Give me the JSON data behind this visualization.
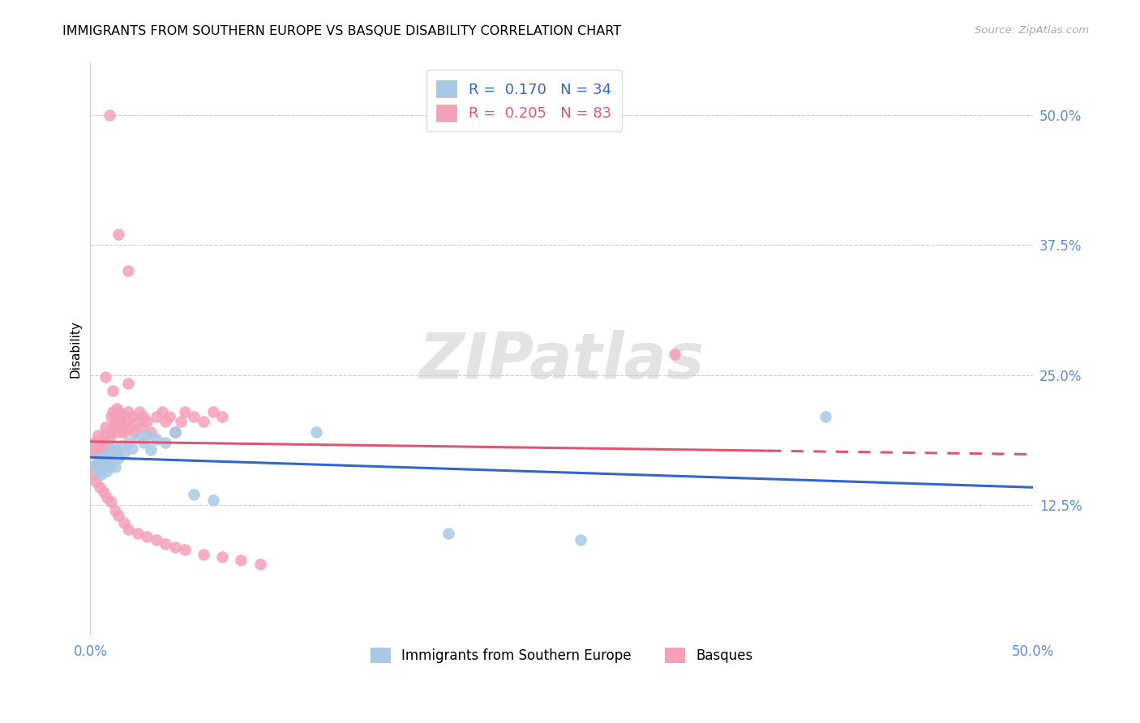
{
  "title": "IMMIGRANTS FROM SOUTHERN EUROPE VS BASQUE DISABILITY CORRELATION CHART",
  "source": "Source: ZipAtlas.com",
  "ylabel": "Disability",
  "xlim": [
    0.0,
    0.5
  ],
  "ylim": [
    0.0,
    0.55
  ],
  "xtick_positions": [
    0.0,
    0.1,
    0.2,
    0.3,
    0.4,
    0.5
  ],
  "xticklabels": [
    "0.0%",
    "",
    "",
    "",
    "",
    "50.0%"
  ],
  "ytick_positions": [
    0.125,
    0.25,
    0.375,
    0.5
  ],
  "ytick_labels": [
    "12.5%",
    "25.0%",
    "37.5%",
    "50.0%"
  ],
  "legend_r_blue": "0.170",
  "legend_n_blue": "34",
  "legend_r_pink": "0.205",
  "legend_n_pink": "83",
  "legend_label_blue": "Immigrants from Southern Europe",
  "legend_label_pink": "Basques",
  "blue_color": "#a8c8e8",
  "pink_color": "#f4a0b8",
  "blue_line_color": "#3366cc",
  "pink_line_color": "#e05575",
  "blue_scatter_x": [
    0.003,
    0.004,
    0.005,
    0.005,
    0.006,
    0.006,
    0.007,
    0.007,
    0.008,
    0.009,
    0.01,
    0.01,
    0.011,
    0.012,
    0.013,
    0.014,
    0.015,
    0.016,
    0.018,
    0.02,
    0.022,
    0.025,
    0.028,
    0.03,
    0.032,
    0.035,
    0.04,
    0.045,
    0.055,
    0.065,
    0.12,
    0.19,
    0.26,
    0.39
  ],
  "blue_scatter_y": [
    0.165,
    0.158,
    0.162,
    0.17,
    0.155,
    0.168,
    0.16,
    0.172,
    0.165,
    0.158,
    0.162,
    0.175,
    0.168,
    0.18,
    0.162,
    0.178,
    0.17,
    0.182,
    0.175,
    0.185,
    0.18,
    0.19,
    0.185,
    0.192,
    0.178,
    0.188,
    0.185,
    0.195,
    0.135,
    0.13,
    0.195,
    0.098,
    0.092,
    0.21
  ],
  "pink_scatter_x": [
    0.002,
    0.002,
    0.003,
    0.003,
    0.004,
    0.004,
    0.005,
    0.005,
    0.006,
    0.006,
    0.007,
    0.007,
    0.008,
    0.008,
    0.008,
    0.009,
    0.009,
    0.01,
    0.01,
    0.011,
    0.011,
    0.012,
    0.012,
    0.013,
    0.013,
    0.014,
    0.014,
    0.015,
    0.015,
    0.016,
    0.016,
    0.017,
    0.017,
    0.018,
    0.019,
    0.02,
    0.021,
    0.022,
    0.023,
    0.025,
    0.026,
    0.027,
    0.028,
    0.03,
    0.032,
    0.035,
    0.038,
    0.04,
    0.042,
    0.045,
    0.048,
    0.05,
    0.055,
    0.06,
    0.065,
    0.07,
    0.002,
    0.003,
    0.005,
    0.007,
    0.009,
    0.011,
    0.013,
    0.015,
    0.018,
    0.02,
    0.025,
    0.03,
    0.035,
    0.04,
    0.045,
    0.05,
    0.06,
    0.07,
    0.08,
    0.09,
    0.01,
    0.015,
    0.02,
    0.31,
    0.008,
    0.012,
    0.02
  ],
  "pink_scatter_y": [
    0.178,
    0.185,
    0.162,
    0.175,
    0.18,
    0.192,
    0.168,
    0.178,
    0.172,
    0.185,
    0.165,
    0.178,
    0.185,
    0.192,
    0.2,
    0.17,
    0.182,
    0.175,
    0.188,
    0.195,
    0.21,
    0.2,
    0.215,
    0.205,
    0.195,
    0.21,
    0.218,
    0.205,
    0.215,
    0.208,
    0.195,
    0.212,
    0.2,
    0.195,
    0.205,
    0.215,
    0.2,
    0.21,
    0.195,
    0.205,
    0.215,
    0.2,
    0.21,
    0.205,
    0.195,
    0.21,
    0.215,
    0.205,
    0.21,
    0.195,
    0.205,
    0.215,
    0.21,
    0.205,
    0.215,
    0.21,
    0.155,
    0.148,
    0.142,
    0.138,
    0.132,
    0.128,
    0.12,
    0.115,
    0.108,
    0.102,
    0.098,
    0.095,
    0.092,
    0.088,
    0.085,
    0.082,
    0.078,
    0.075,
    0.072,
    0.068,
    0.5,
    0.385,
    0.35,
    0.27,
    0.248,
    0.235,
    0.242
  ]
}
